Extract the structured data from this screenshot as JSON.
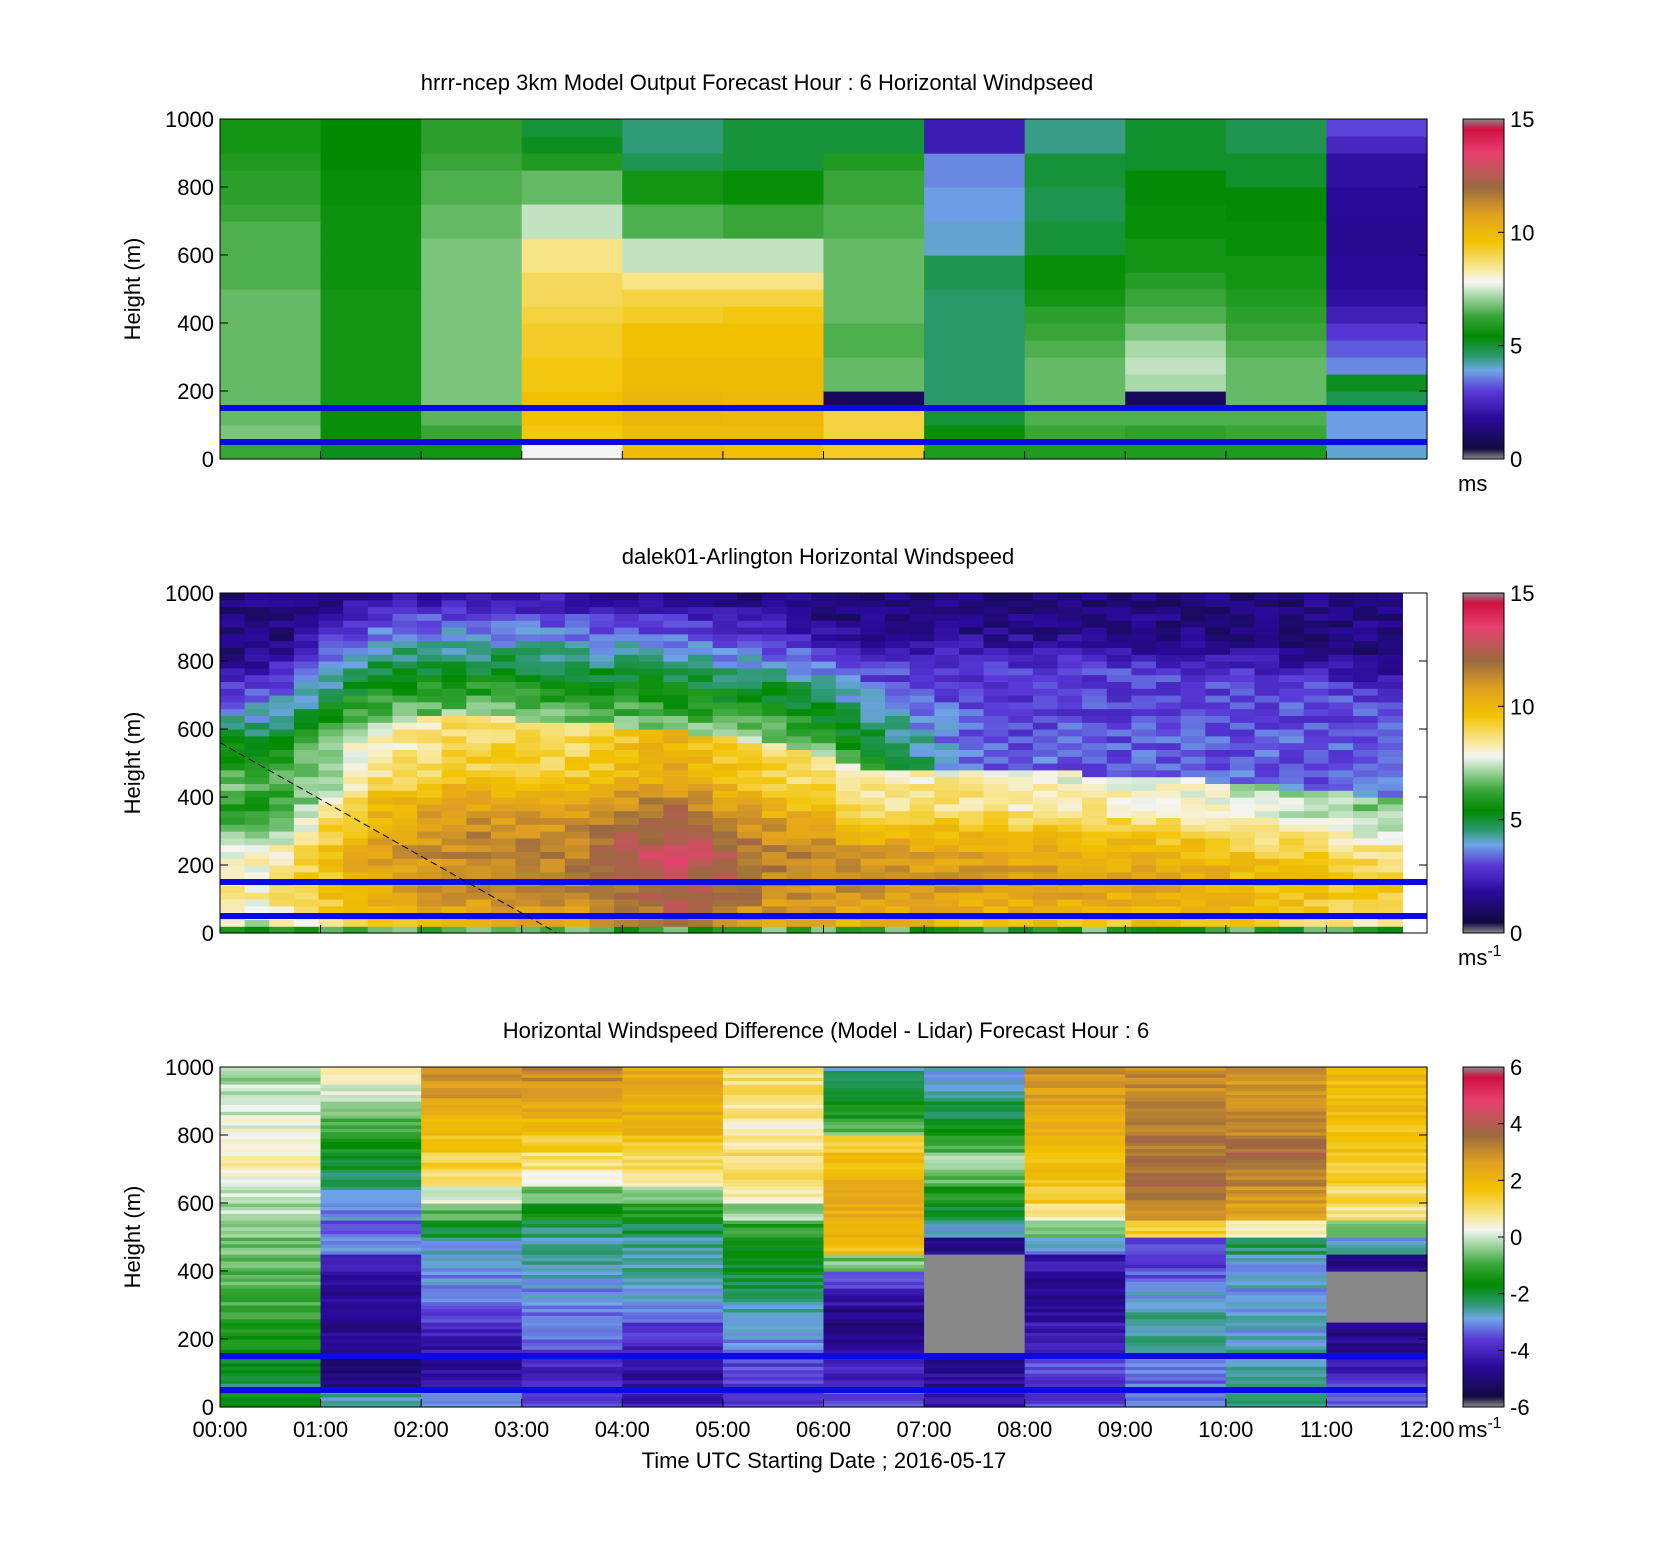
{
  "chart_data": [
    {
      "type": "heatmap",
      "title": "hrrr-ncep 3km Model Output   Forecast Hour : 6 Horizontal Windpseed",
      "ylabel": "Height (m)",
      "ylim": [
        0,
        1000
      ],
      "yticks": [
        "0",
        "200",
        "400",
        "600",
        "800",
        "1000"
      ],
      "xlim": [
        0,
        12
      ],
      "colorbar": {
        "range": [
          0,
          15
        ],
        "ticks": [
          "0",
          "5",
          "10",
          "15"
        ],
        "unit": "ms",
        "unit_sup": ""
      },
      "reference_lines_m": [
        150,
        50
      ],
      "heights_m": [
        25,
        75,
        125,
        175,
        225,
        275,
        325,
        375,
        425,
        475,
        525,
        575,
        625,
        675,
        725,
        775,
        825,
        875,
        925,
        975
      ],
      "columns": [
        {
          "t": 0.5,
          "values": [
            6.2,
            6.8,
            6.6,
            6.6,
            6.6,
            6.6,
            6.6,
            6.6,
            6.6,
            6.6,
            6.4,
            6.4,
            6.4,
            6.4,
            6.2,
            6.0,
            6.0,
            5.8,
            5.6,
            5.6
          ]
        },
        {
          "t": 1.5,
          "values": [
            5.0,
            5.4,
            5.4,
            5.6,
            5.6,
            5.6,
            5.6,
            5.6,
            5.6,
            5.6,
            5.5,
            5.5,
            5.5,
            5.5,
            5.5,
            5.4,
            5.4,
            5.3,
            5.3,
            5.3
          ]
        },
        {
          "t": 2.5,
          "values": [
            5.6,
            6.2,
            6.5,
            6.8,
            6.8,
            6.8,
            6.8,
            6.8,
            6.8,
            6.8,
            6.8,
            6.8,
            6.8,
            6.6,
            6.6,
            6.4,
            6.4,
            6.2,
            6.0,
            6.0
          ]
        },
        {
          "t": 3.5,
          "values": [
            7.8,
            9.6,
            9.8,
            9.8,
            9.6,
            9.6,
            9.4,
            9.4,
            9.2,
            9.0,
            9.0,
            8.6,
            8.6,
            7.4,
            7.4,
            6.6,
            6.6,
            5.8,
            5.0,
            4.8
          ]
        },
        {
          "t": 4.5,
          "values": [
            10.0,
            10.0,
            10.2,
            10.2,
            10.0,
            10.0,
            9.8,
            9.8,
            9.4,
            9.2,
            8.6,
            7.4,
            7.4,
            6.4,
            6.4,
            5.6,
            5.6,
            4.6,
            4.3,
            4.3
          ]
        },
        {
          "t": 5.5,
          "values": [
            9.8,
            10.0,
            10.1,
            10.1,
            10.0,
            10.0,
            9.8,
            9.8,
            9.6,
            9.2,
            8.6,
            7.4,
            7.4,
            6.2,
            6.2,
            5.4,
            5.4,
            4.8,
            4.8,
            4.8
          ]
        },
        {
          "t": 6.5,
          "values": [
            9.4,
            9.2,
            9.2,
            0.4,
            6.6,
            6.6,
            6.4,
            6.4,
            6.6,
            6.6,
            6.6,
            6.6,
            6.6,
            6.4,
            6.4,
            6.2,
            6.2,
            5.8,
            4.8,
            4.8
          ]
        },
        {
          "t": 7.5,
          "values": [
            5.8,
            5.4,
            4.8,
            4.4,
            4.4,
            4.4,
            4.4,
            4.4,
            4.4,
            4.4,
            4.6,
            4.6,
            3.8,
            3.8,
            3.6,
            3.6,
            3.4,
            3.4,
            1.9,
            1.9
          ]
        },
        {
          "t": 8.5,
          "values": [
            5.8,
            6.2,
            6.4,
            6.6,
            6.6,
            6.6,
            6.4,
            6.2,
            6.0,
            5.6,
            5.4,
            5.4,
            4.8,
            4.8,
            4.6,
            4.6,
            4.8,
            4.8,
            4.2,
            4.2
          ]
        },
        {
          "t": 9.5,
          "values": [
            5.8,
            6.0,
            6.4,
            0.4,
            7.2,
            7.4,
            7.2,
            6.8,
            6.4,
            6.2,
            5.9,
            5.6,
            5.6,
            5.4,
            5.4,
            5.2,
            5.2,
            4.9,
            4.9,
            4.9
          ]
        },
        {
          "t": 10.5,
          "values": [
            5.8,
            6.2,
            6.4,
            6.6,
            6.6,
            6.6,
            6.4,
            6.2,
            6.0,
            5.8,
            5.6,
            5.6,
            5.4,
            5.4,
            5.2,
            5.2,
            4.9,
            4.9,
            4.6,
            4.6
          ]
        },
        {
          "t": 11.5,
          "values": [
            3.8,
            3.6,
            3.6,
            4.6,
            5.0,
            3.4,
            3.0,
            2.6,
            2.0,
            1.6,
            1.4,
            1.4,
            1.3,
            1.3,
            1.4,
            1.4,
            1.6,
            1.6,
            2.2,
            2.8
          ]
        }
      ]
    },
    {
      "type": "heatmap",
      "title": "dalek01-Arlington  Horizontal Windspeed",
      "ylabel": "Height (m)",
      "ylim": [
        0,
        1000
      ],
      "yticks": [
        "0",
        "200",
        "400",
        "600",
        "800",
        "1000"
      ],
      "xlim": [
        0,
        12
      ],
      "colorbar": {
        "range": [
          0,
          15
        ],
        "ticks": [
          "0",
          "5",
          "10",
          "15"
        ],
        "unit": "ms",
        "unit_sup": "-1"
      },
      "reference_lines_m": [
        150,
        50
      ],
      "dashed_line": {
        "from": [
          0,
          560
        ],
        "to": [
          3.35,
          0
        ]
      },
      "description": "lidar profiles: low-level jet of ~10-14 m/s below ~450-650 m (strongest 03:30-05:00 near 50-300 m), green/purple weaker winds aloft",
      "key_profiles": [
        {
          "t": 0.5,
          "jet_top_m": 420,
          "jet_peak": 8.5
        },
        {
          "t": 1.5,
          "jet_top_m": 620,
          "jet_peak": 11.0
        },
        {
          "t": 2.5,
          "jet_top_m": 640,
          "jet_peak": 12.0
        },
        {
          "t": 3.5,
          "jet_top_m": 620,
          "jet_peak": 12.0
        },
        {
          "t": 4.5,
          "jet_top_m": 600,
          "jet_peak": 13.6
        },
        {
          "t": 5.5,
          "jet_top_m": 560,
          "jet_peak": 12.0
        },
        {
          "t": 6.5,
          "jet_top_m": 470,
          "jet_peak": 11.5
        },
        {
          "t": 7.5,
          "jet_top_m": 480,
          "jet_peak": 11.2
        },
        {
          "t": 8.5,
          "jet_top_m": 470,
          "jet_peak": 11.0
        },
        {
          "t": 9.5,
          "jet_top_m": 460,
          "jet_peak": 10.8
        },
        {
          "t": 10.5,
          "jet_top_m": 430,
          "jet_peak": 10.2
        },
        {
          "t": 11.5,
          "jet_top_m": 400,
          "jet_peak": 9.6
        }
      ]
    },
    {
      "type": "heatmap",
      "title": "Horizontal Windspeed Difference (Model - Lidar) Forecast Hour : 6",
      "xlabel": "Time UTC  Starting Date ; 2016-05-17",
      "ylabel": "Height (m)",
      "ylim": [
        0,
        1000
      ],
      "yticks": [
        "0",
        "200",
        "400",
        "600",
        "800",
        "1000"
      ],
      "xlim": [
        0,
        12
      ],
      "xticks": [
        "00:00",
        "01:00",
        "02:00",
        "03:00",
        "04:00",
        "05:00",
        "06:00",
        "07:00",
        "08:00",
        "09:00",
        "10:00",
        "11:00",
        "12:00"
      ],
      "colorbar": {
        "range": [
          -6,
          6
        ],
        "ticks": [
          "-6",
          "-4",
          "-2",
          "0",
          "2",
          "4",
          "6"
        ],
        "unit": "ms",
        "unit_sup": "-1"
      },
      "reference_lines_m": [
        150,
        50
      ],
      "heights_m": [
        25,
        75,
        125,
        175,
        225,
        275,
        325,
        375,
        425,
        475,
        525,
        575,
        625,
        675,
        725,
        775,
        825,
        875,
        925,
        975
      ],
      "columns": [
        {
          "t": 0.5,
          "values": [
            -1.8,
            -2.4,
            -2.0,
            -1.6,
            -1.4,
            -1.2,
            -1.0,
            -0.9,
            -0.8,
            -0.6,
            -0.4,
            -0.2,
            0.1,
            0.3,
            0.6,
            0.4,
            0.2,
            0.1,
            -0.2,
            -0.4
          ]
        },
        {
          "t": 1.5,
          "values": [
            -2.8,
            -5.2,
            -5.4,
            -5.2,
            -5.0,
            -5.0,
            -5.0,
            -4.8,
            -4.2,
            -3.4,
            -3.6,
            -3.2,
            -2.8,
            -2.4,
            -2.0,
            -1.6,
            -1.0,
            -0.6,
            0.2,
            0.6
          ]
        },
        {
          "t": 2.5,
          "values": [
            -3.2,
            -4.8,
            -4.8,
            -4.6,
            -4.4,
            -4.0,
            -3.4,
            -3.2,
            -3.2,
            -3.0,
            -2.2,
            -0.8,
            0.2,
            1.2,
            1.4,
            1.8,
            2.0,
            2.4,
            2.8,
            3.0
          ]
        },
        {
          "t": 3.5,
          "values": [
            -4.0,
            -4.2,
            -4.2,
            -3.8,
            -3.6,
            -3.4,
            -3.2,
            -3.0,
            -2.8,
            -2.8,
            -2.4,
            -1.6,
            -0.6,
            0.6,
            1.0,
            1.6,
            2.0,
            2.6,
            3.0,
            3.2
          ]
        },
        {
          "t": 4.5,
          "values": [
            -4.4,
            -4.8,
            -4.6,
            -4.2,
            -4.0,
            -3.4,
            -3.2,
            -3.0,
            -2.8,
            -2.6,
            -2.2,
            -1.4,
            -0.4,
            0.6,
            1.2,
            1.6,
            2.2,
            2.4,
            2.6,
            2.6
          ]
        },
        {
          "t": 5.5,
          "values": [
            -3.8,
            -4.0,
            -3.8,
            -3.4,
            -3.0,
            -2.8,
            -2.6,
            -2.2,
            -2.0,
            -1.8,
            -1.2,
            -0.4,
            0.6,
            1.2,
            1.0,
            0.8,
            0.6,
            0.8,
            1.0,
            1.0
          ]
        },
        {
          "t": 6.5,
          "values": [
            -3.8,
            -4.4,
            -4.4,
            -5.0,
            -5.2,
            -5.2,
            -4.6,
            -3.6,
            -0.6,
            1.8,
            2.2,
            2.4,
            2.4,
            2.2,
            2.0,
            1.4,
            -0.8,
            -1.6,
            -2.4,
            -2.6
          ]
        },
        {
          "t": 7.5,
          "values": [
            -4.4,
            -4.8,
            -5.0,
            -6.5,
            -6.5,
            -6.5,
            -6.5,
            -6.5,
            -6.5,
            -5.0,
            -3.0,
            -2.0,
            -1.4,
            -0.8,
            -0.4,
            -0.8,
            -1.6,
            -2.2,
            -2.8,
            -3.0
          ]
        },
        {
          "t": 8.5,
          "values": [
            -3.8,
            -4.0,
            -3.8,
            -4.2,
            -4.6,
            -4.8,
            -5.0,
            -4.8,
            -4.6,
            -3.2,
            -0.6,
            0.8,
            1.6,
            1.8,
            2.0,
            2.2,
            2.4,
            2.6,
            2.8,
            3.0
          ]
        },
        {
          "t": 9.5,
          "values": [
            -3.6,
            -3.4,
            -3.2,
            -2.8,
            -2.8,
            -2.8,
            -3.0,
            -3.6,
            -4.0,
            -3.6,
            1.4,
            3.0,
            3.6,
            3.8,
            3.8,
            3.6,
            3.4,
            3.4,
            3.2,
            3.2
          ]
        },
        {
          "t": 10.5,
          "values": [
            -2.6,
            -2.8,
            -2.8,
            -2.8,
            -3.0,
            -3.0,
            -3.2,
            -3.0,
            -3.0,
            -2.4,
            0.8,
            2.6,
            3.0,
            3.4,
            3.8,
            3.6,
            3.2,
            3.2,
            3.0,
            3.0
          ]
        },
        {
          "t": 11.5,
          "values": [
            -3.4,
            -4.0,
            -4.6,
            -5.0,
            -5.2,
            -6.5,
            -6.5,
            -6.5,
            -5.0,
            -3.0,
            -0.4,
            1.0,
            1.2,
            1.4,
            1.6,
            1.8,
            1.8,
            2.0,
            2.0,
            2.0
          ]
        }
      ]
    }
  ]
}
